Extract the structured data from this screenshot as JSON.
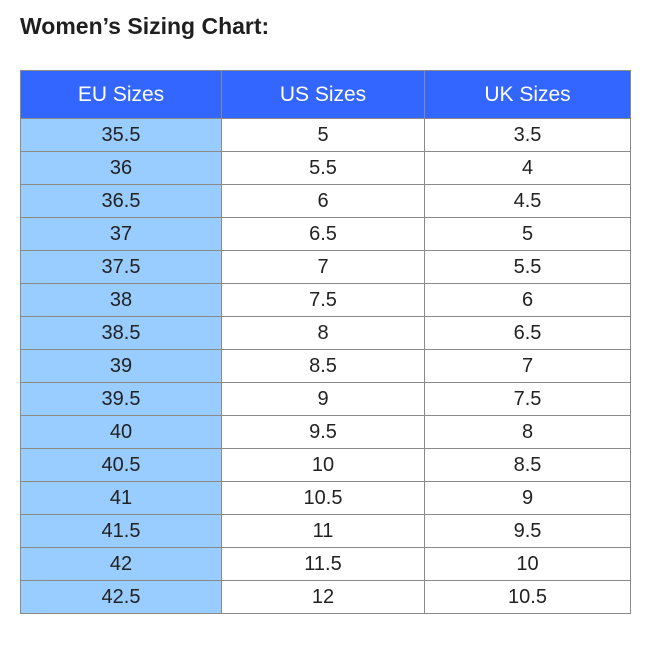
{
  "title": "Women’s Sizing Chart:",
  "table": {
    "headers": [
      "EU Sizes",
      "US Sizes",
      "UK Sizes"
    ],
    "rows": [
      [
        "35.5",
        "5",
        "3.5"
      ],
      [
        "36",
        "5.5",
        "4"
      ],
      [
        "36.5",
        "6",
        "4.5"
      ],
      [
        "37",
        "6.5",
        "5"
      ],
      [
        "37.5",
        "7",
        "5.5"
      ],
      [
        "38",
        "7.5",
        "6"
      ],
      [
        "38.5",
        "8",
        "6.5"
      ],
      [
        "39",
        "8.5",
        "7"
      ],
      [
        "39.5",
        "9",
        "7.5"
      ],
      [
        "40",
        "9.5",
        "8"
      ],
      [
        "40.5",
        "10",
        "8.5"
      ],
      [
        "41",
        "10.5",
        "9"
      ],
      [
        "41.5",
        "11",
        "9.5"
      ],
      [
        "42",
        "11.5",
        "10"
      ],
      [
        "42.5",
        "12",
        "10.5"
      ]
    ]
  },
  "colors": {
    "header_bg": "#3366ff",
    "header_text": "#ffffff",
    "eu_column_bg": "#99ccff",
    "border": "#8a8a8a"
  }
}
